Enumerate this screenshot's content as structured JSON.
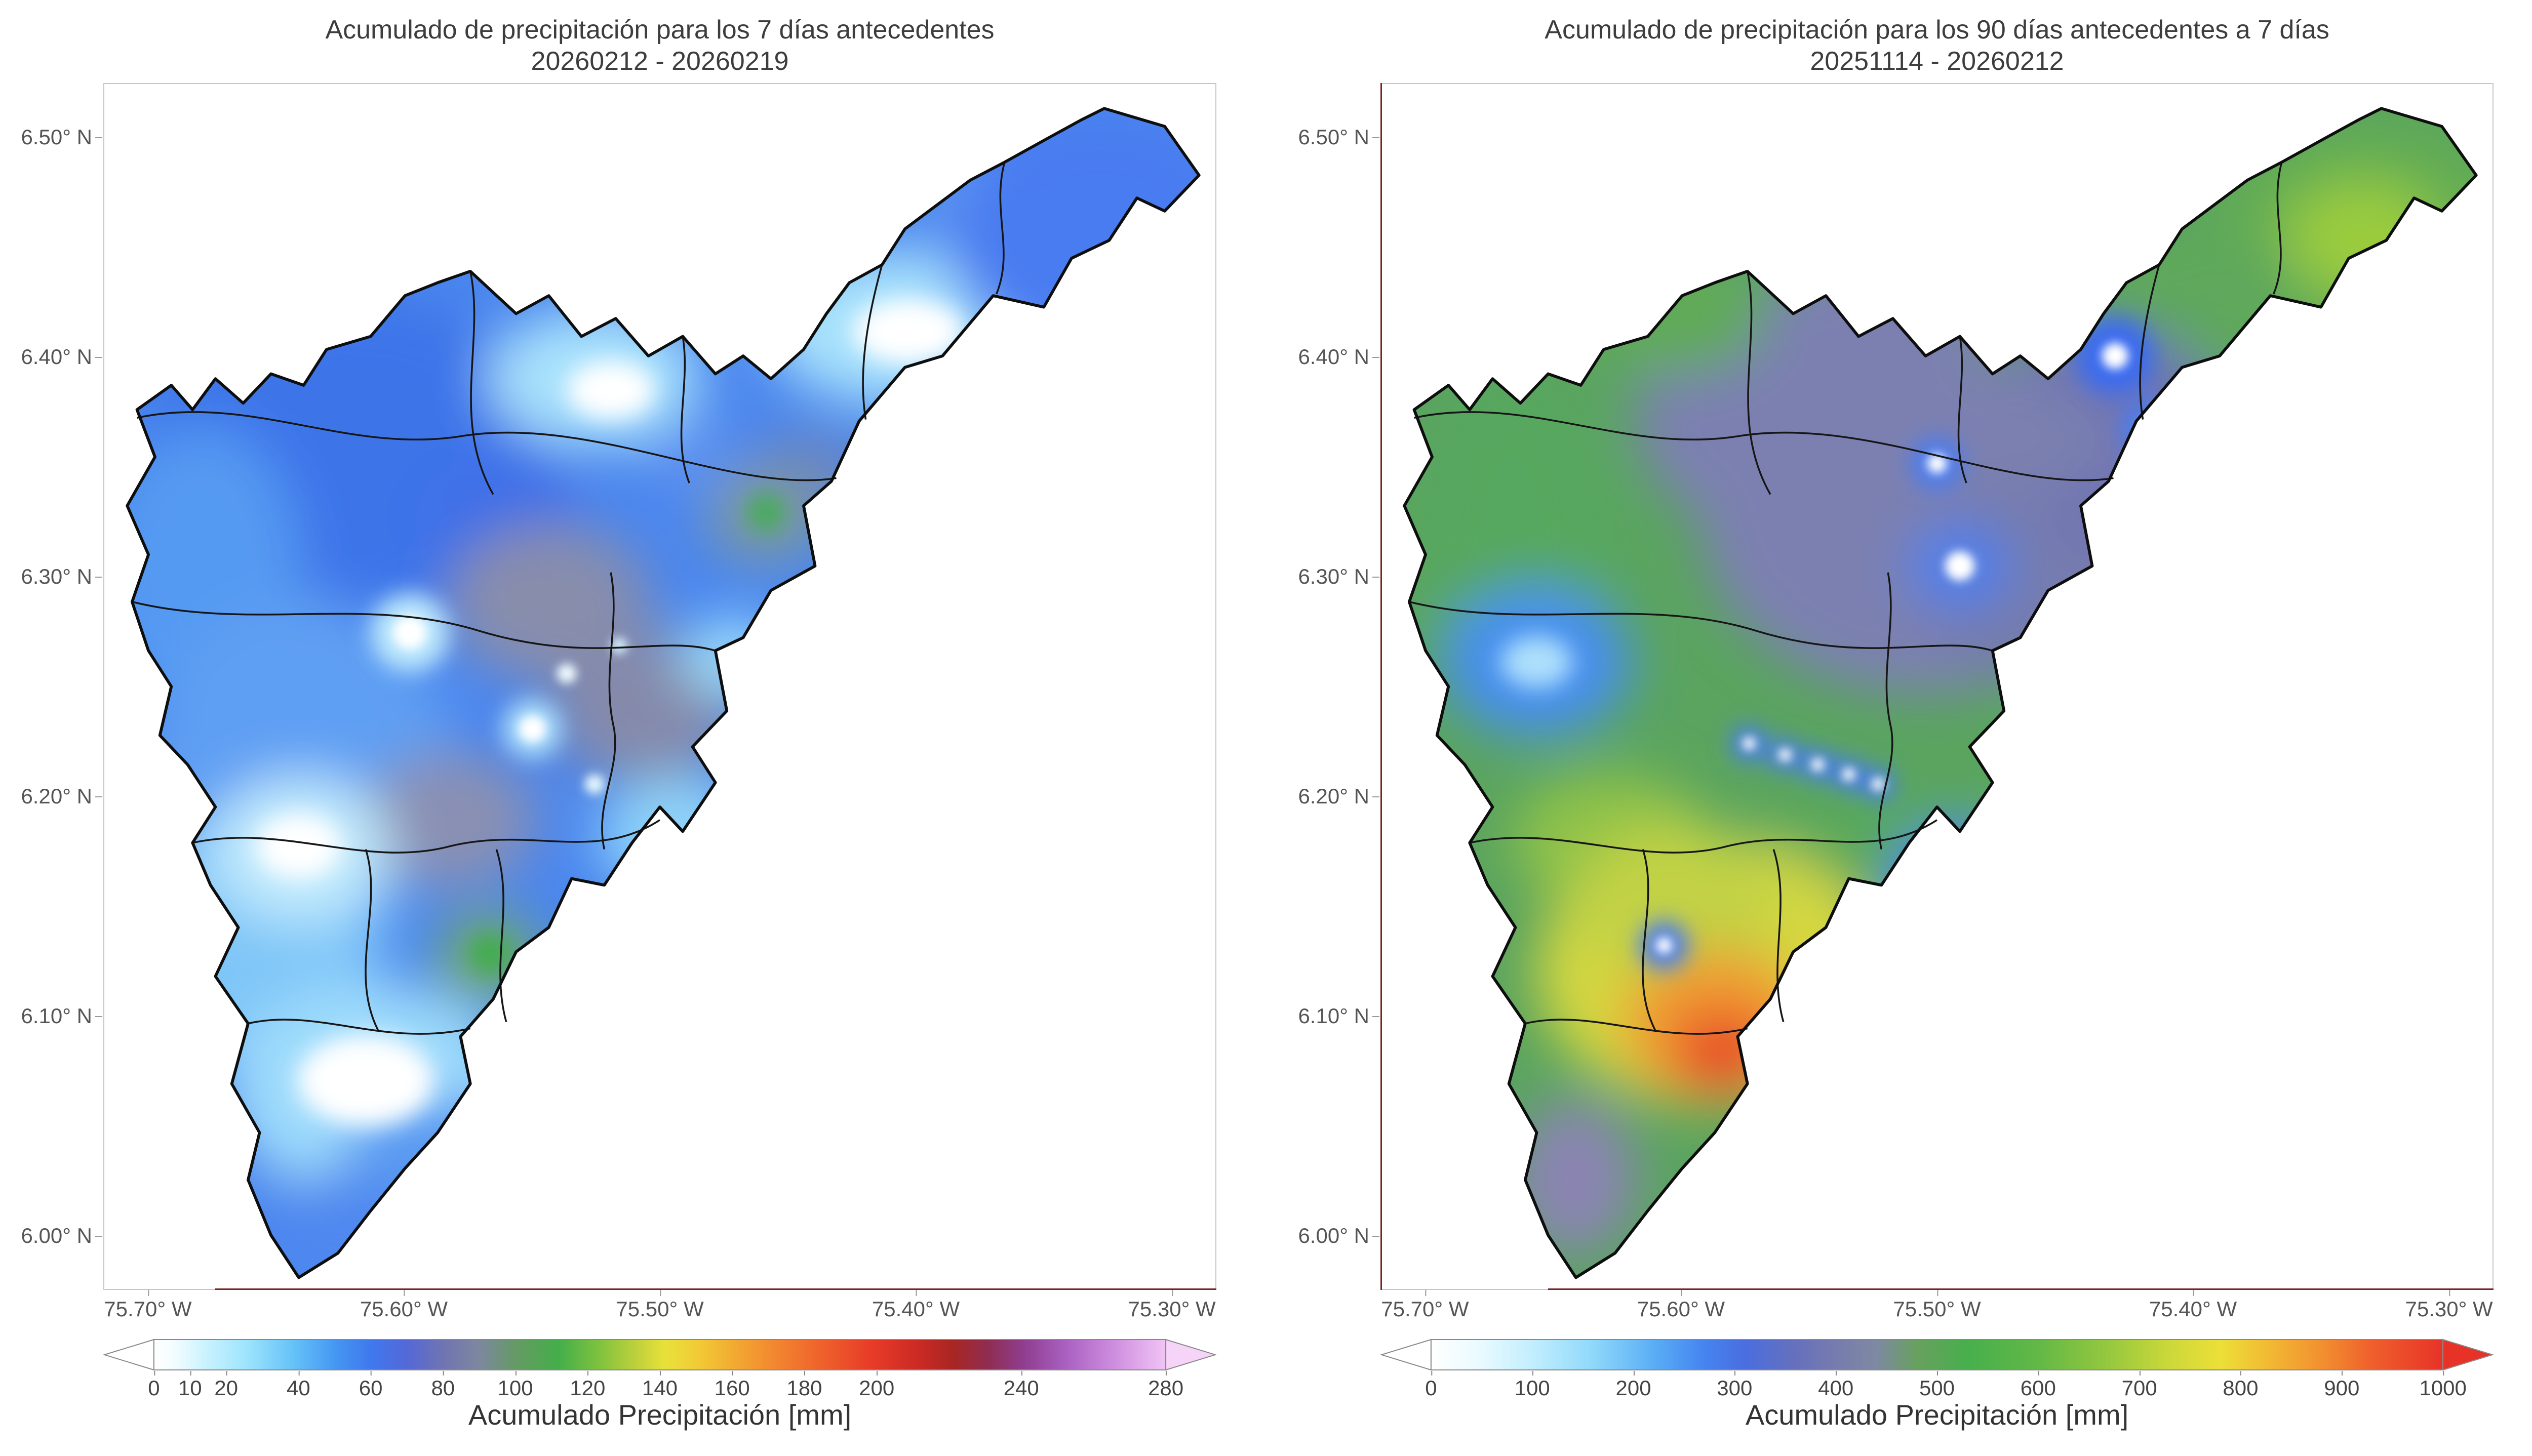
{
  "chart_data": [
    {
      "type": "map",
      "title_line1": "Acumulado de precipitación para los 7 días antecedentes",
      "title_line2": "20260212 - 20260219",
      "y_ticks": [
        "6.50° N",
        "6.40° N",
        "6.30° N",
        "6.20° N",
        "6.10° N",
        "6.00° N"
      ],
      "x_ticks": [
        "75.70° W",
        "75.60° W",
        "75.50° W",
        "75.40° W",
        "75.30° W"
      ],
      "colorbar": {
        "label": "Acumulado Precipitación [mm]",
        "ticks": [
          0,
          10,
          20,
          40,
          60,
          80,
          100,
          120,
          140,
          160,
          180,
          200,
          240,
          280
        ],
        "min": 0,
        "max": 280,
        "stops": [
          [
            0,
            "#ffffff"
          ],
          [
            0.02,
            "#f2fdff"
          ],
          [
            0.05,
            "#ccf2fe"
          ],
          [
            0.09,
            "#9fe5fd"
          ],
          [
            0.14,
            "#63c0f7"
          ],
          [
            0.18,
            "#4596f2"
          ],
          [
            0.215,
            "#3f78ee"
          ],
          [
            0.25,
            "#5468d8"
          ],
          [
            0.285,
            "#6f74b2"
          ],
          [
            0.32,
            "#7d87a0"
          ],
          [
            0.36,
            "#639b62"
          ],
          [
            0.4,
            "#44ae4a"
          ],
          [
            0.44,
            "#7fc23e"
          ],
          [
            0.48,
            "#c4d23c"
          ],
          [
            0.505,
            "#e8e13a"
          ],
          [
            0.54,
            "#f2c935"
          ],
          [
            0.575,
            "#f2a932"
          ],
          [
            0.61,
            "#f28a30"
          ],
          [
            0.66,
            "#ef612c"
          ],
          [
            0.71,
            "#e73b28"
          ],
          [
            0.755,
            "#cc2a24"
          ],
          [
            0.79,
            "#a82623"
          ],
          [
            0.825,
            "#8f2d52"
          ],
          [
            0.86,
            "#8f3e8f"
          ],
          [
            0.9,
            "#a95fc0"
          ],
          [
            0.95,
            "#cf8fe0"
          ],
          [
            1,
            "#f0c4f4"
          ]
        ],
        "arrow_left_color": "#ffffff",
        "arrow_right_color": "#f6d4f8"
      }
    },
    {
      "type": "map",
      "title_line1": "Acumulado de precipitación para los 90 días antecedentes a 7 días",
      "title_line2": "20251114 - 20260212",
      "y_ticks": [
        "6.50° N",
        "6.40° N",
        "6.30° N",
        "6.20° N",
        "6.10° N",
        "6.00° N"
      ],
      "x_ticks": [
        "75.70° W",
        "75.60° W",
        "75.50° W",
        "75.40° W",
        "75.30° W"
      ],
      "colorbar": {
        "label": "Acumulado Precipitación [mm]",
        "ticks": [
          0,
          100,
          200,
          300,
          400,
          500,
          600,
          700,
          800,
          900,
          1000
        ],
        "min": 0,
        "max": 1000,
        "stops": [
          [
            0,
            "#ffffff"
          ],
          [
            0.05,
            "#e8faff"
          ],
          [
            0.1,
            "#c2eefe"
          ],
          [
            0.16,
            "#8fd8fb"
          ],
          [
            0.22,
            "#5aaef5"
          ],
          [
            0.27,
            "#4584f0"
          ],
          [
            0.31,
            "#4a6ee0"
          ],
          [
            0.36,
            "#6670bc"
          ],
          [
            0.4,
            "#767cae"
          ],
          [
            0.44,
            "#7e89a2"
          ],
          [
            0.48,
            "#68a060"
          ],
          [
            0.53,
            "#47af4c"
          ],
          [
            0.6,
            "#62b846"
          ],
          [
            0.67,
            "#96c83e"
          ],
          [
            0.73,
            "#ccd83a"
          ],
          [
            0.78,
            "#ecdf38"
          ],
          [
            0.83,
            "#f2b833"
          ],
          [
            0.88,
            "#f29030"
          ],
          [
            0.93,
            "#ef5f2c"
          ],
          [
            1,
            "#e73228"
          ]
        ],
        "arrow_left_color": "#ffffff",
        "arrow_right_color": "#e73228"
      }
    }
  ]
}
